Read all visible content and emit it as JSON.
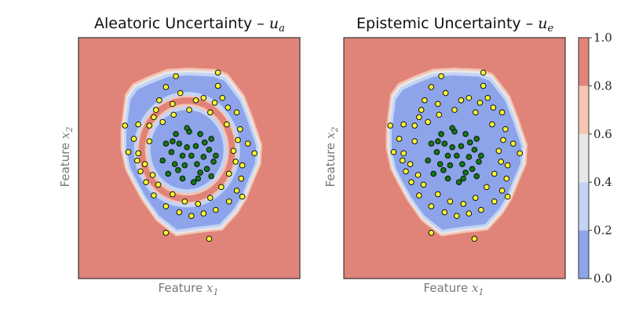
{
  "chart_data": [
    {
      "type": "heatmap",
      "title": "Aleatoric Uncertainty –",
      "title_symbol": "u",
      "title_subscript": "a",
      "xlabel": "Feature",
      "xlabel_symbol": "x",
      "xlabel_subscript": "1",
      "ylabel": "Feature",
      "ylabel_symbol": "x",
      "ylabel_subscript": "2",
      "xlim": [
        -1,
        1
      ],
      "ylim": [
        -1,
        1
      ],
      "inner_ring_uncertain": true,
      "boundary_outer": [
        [
          -0.62,
          0.24
        ],
        [
          -0.58,
          0.53
        ],
        [
          -0.51,
          0.62
        ],
        [
          -0.37,
          0.68
        ],
        [
          -0.2,
          0.74
        ],
        [
          0.0,
          0.75
        ],
        [
          0.24,
          0.74
        ],
        [
          0.35,
          0.7
        ],
        [
          0.5,
          0.52
        ],
        [
          0.58,
          0.33
        ],
        [
          0.66,
          0.11
        ],
        [
          0.65,
          -0.05
        ],
        [
          0.58,
          -0.2
        ],
        [
          0.52,
          -0.34
        ],
        [
          0.44,
          -0.46
        ],
        [
          0.3,
          -0.6
        ],
        [
          0.1,
          -0.62
        ],
        [
          -0.12,
          -0.65
        ],
        [
          -0.3,
          -0.52
        ],
        [
          -0.43,
          -0.35
        ],
        [
          -0.52,
          -0.2
        ],
        [
          -0.58,
          -0.09
        ],
        [
          -0.62,
          0.08
        ]
      ],
      "ring_center": [
        -0.02,
        0.07
      ],
      "ring_radii": [
        0.45,
        0.36
      ],
      "series": [
        {
          "name": "",
          "color": "#ffff33",
          "points": [
            [
              -0.21,
              0.59
            ],
            [
              -0.08,
              0.54
            ],
            [
              0.26,
              0.6
            ],
            [
              0.35,
              0.42
            ],
            [
              0.23,
              0.46
            ],
            [
              0.06,
              0.48
            ],
            [
              -0.15,
              0.45
            ],
            [
              -0.3,
              0.4
            ],
            [
              -0.36,
              0.27
            ],
            [
              -0.46,
              0.28
            ],
            [
              -0.5,
              0.16
            ],
            [
              -0.55,
              0.05
            ],
            [
              -0.46,
              0.04
            ],
            [
              -0.36,
              0.14
            ],
            [
              -0.32,
              0.34
            ],
            [
              -0.27,
              0.48
            ],
            [
              0.13,
              0.5
            ],
            [
              0.3,
              0.5
            ],
            [
              0.43,
              0.38
            ],
            [
              0.46,
              0.24
            ],
            [
              0.53,
              0.12
            ],
            [
              0.44,
              0.15
            ],
            [
              0.4,
              0.06
            ],
            [
              0.42,
              -0.03
            ],
            [
              0.48,
              -0.06
            ],
            [
              0.47,
              -0.17
            ],
            [
              0.43,
              -0.27
            ],
            [
              0.36,
              -0.36
            ],
            [
              0.24,
              -0.43
            ],
            [
              0.13,
              -0.46
            ],
            [
              0.02,
              -0.48
            ],
            [
              -0.09,
              -0.45
            ],
            [
              -0.21,
              -0.4
            ],
            [
              -0.32,
              -0.31
            ],
            [
              -0.39,
              -0.2
            ],
            [
              -0.44,
              -0.11
            ],
            [
              -0.47,
              -0.02
            ],
            [
              -0.4,
              -0.05
            ],
            [
              -0.33,
              -0.14
            ],
            [
              -0.28,
              -0.22
            ],
            [
              -0.15,
              -0.3
            ],
            [
              -0.04,
              -0.36
            ],
            [
              0.08,
              -0.38
            ],
            [
              0.19,
              -0.33
            ],
            [
              0.29,
              -0.24
            ],
            [
              0.36,
              -0.13
            ],
            [
              0.34,
              0.28
            ],
            [
              0.19,
              0.38
            ],
            [
              0.0,
              0.4
            ],
            [
              -0.14,
              0.36
            ],
            [
              -0.24,
              0.3
            ],
            [
              -0.58,
              0.27
            ],
            [
              -0.21,
              -0.62
            ],
            [
              0.18,
              -0.67
            ],
            [
              0.26,
              0.71
            ],
            [
              -0.12,
              0.68
            ],
            [
              0.48,
              -0.32
            ],
            [
              0.59,
              0.04
            ]
          ]
        },
        {
          "name": "",
          "color": "#117a11",
          "points": [
            [
              -0.02,
              0.09
            ],
            [
              0.06,
              0.1
            ],
            [
              0.13,
              0.01
            ],
            [
              0.18,
              0.07
            ],
            [
              -0.09,
              0.12
            ],
            [
              -0.16,
              0.05
            ],
            [
              -0.13,
              -0.05
            ],
            [
              -0.04,
              -0.06
            ],
            [
              0.07,
              -0.05
            ],
            [
              0.16,
              -0.09
            ],
            [
              0.0,
              0.22
            ],
            [
              0.1,
              0.2
            ],
            [
              -0.12,
              0.2
            ],
            [
              -0.21,
              0.12
            ],
            [
              -0.19,
              -0.13
            ],
            [
              -0.06,
              -0.17
            ],
            [
              0.08,
              -0.17
            ],
            [
              0.2,
              -0.15
            ],
            [
              0.24,
              0.02
            ],
            [
              0.2,
              0.16
            ],
            [
              -0.24,
              -0.02
            ],
            [
              0.02,
              0.02
            ],
            [
              -0.06,
              0.02
            ],
            [
              0.1,
              -0.12
            ],
            [
              -0.1,
              -0.1
            ],
            [
              0.14,
              0.13
            ],
            [
              -0.15,
              0.14
            ],
            [
              0.04,
              -0.2
            ],
            [
              -0.02,
              0.25
            ],
            [
              0.22,
              -0.03
            ]
          ]
        }
      ]
    },
    {
      "type": "heatmap",
      "title": "Epistemic Uncertainty –",
      "title_symbol": "u",
      "title_subscript": "e",
      "xlabel": "Feature",
      "xlabel_symbol": "x",
      "xlabel_subscript": "1",
      "ylabel": "Feature",
      "ylabel_symbol": "x",
      "ylabel_subscript": "2",
      "xlim": [
        -1,
        1
      ],
      "ylim": [
        -1,
        1
      ],
      "inner_ring_uncertain": false,
      "boundary_outer": [
        [
          -0.62,
          0.24
        ],
        [
          -0.58,
          0.53
        ],
        [
          -0.51,
          0.62
        ],
        [
          -0.37,
          0.68
        ],
        [
          -0.2,
          0.74
        ],
        [
          0.0,
          0.75
        ],
        [
          0.24,
          0.74
        ],
        [
          0.35,
          0.7
        ],
        [
          0.5,
          0.52
        ],
        [
          0.58,
          0.33
        ],
        [
          0.66,
          0.11
        ],
        [
          0.65,
          -0.05
        ],
        [
          0.58,
          -0.2
        ],
        [
          0.52,
          -0.34
        ],
        [
          0.44,
          -0.46
        ],
        [
          0.3,
          -0.6
        ],
        [
          0.1,
          -0.62
        ],
        [
          -0.12,
          -0.65
        ],
        [
          -0.3,
          -0.52
        ],
        [
          -0.43,
          -0.35
        ],
        [
          -0.52,
          -0.2
        ],
        [
          -0.58,
          -0.09
        ],
        [
          -0.62,
          0.08
        ]
      ],
      "series": [
        {
          "name": "",
          "color": "#ffff33",
          "points": [
            [
              -0.21,
              0.59
            ],
            [
              -0.08,
              0.54
            ],
            [
              0.26,
              0.6
            ],
            [
              0.35,
              0.42
            ],
            [
              0.23,
              0.46
            ],
            [
              0.06,
              0.48
            ],
            [
              -0.15,
              0.45
            ],
            [
              -0.3,
              0.4
            ],
            [
              -0.36,
              0.27
            ],
            [
              -0.46,
              0.28
            ],
            [
              -0.5,
              0.16
            ],
            [
              -0.55,
              0.05
            ],
            [
              -0.46,
              0.04
            ],
            [
              -0.36,
              0.14
            ],
            [
              -0.32,
              0.34
            ],
            [
              -0.27,
              0.48
            ],
            [
              0.13,
              0.5
            ],
            [
              0.3,
              0.5
            ],
            [
              0.43,
              0.38
            ],
            [
              0.46,
              0.24
            ],
            [
              0.53,
              0.12
            ],
            [
              0.44,
              0.15
            ],
            [
              0.4,
              0.06
            ],
            [
              0.42,
              -0.03
            ],
            [
              0.48,
              -0.06
            ],
            [
              0.47,
              -0.17
            ],
            [
              0.43,
              -0.27
            ],
            [
              0.36,
              -0.36
            ],
            [
              0.24,
              -0.43
            ],
            [
              0.13,
              -0.46
            ],
            [
              0.02,
              -0.48
            ],
            [
              -0.09,
              -0.45
            ],
            [
              -0.21,
              -0.4
            ],
            [
              -0.32,
              -0.31
            ],
            [
              -0.39,
              -0.2
            ],
            [
              -0.44,
              -0.11
            ],
            [
              -0.47,
              -0.02
            ],
            [
              -0.4,
              -0.05
            ],
            [
              -0.33,
              -0.14
            ],
            [
              -0.28,
              -0.22
            ],
            [
              -0.15,
              -0.3
            ],
            [
              -0.04,
              -0.36
            ],
            [
              0.08,
              -0.38
            ],
            [
              0.19,
              -0.33
            ],
            [
              0.29,
              -0.24
            ],
            [
              0.36,
              -0.13
            ],
            [
              0.34,
              0.28
            ],
            [
              0.19,
              0.38
            ],
            [
              0.0,
              0.4
            ],
            [
              -0.14,
              0.36
            ],
            [
              -0.24,
              0.3
            ],
            [
              -0.58,
              0.27
            ],
            [
              -0.21,
              -0.62
            ],
            [
              0.18,
              -0.67
            ],
            [
              0.26,
              0.71
            ],
            [
              -0.12,
              0.68
            ],
            [
              0.48,
              -0.32
            ],
            [
              0.59,
              0.04
            ]
          ]
        },
        {
          "name": "",
          "color": "#117a11",
          "points": [
            [
              -0.02,
              0.09
            ],
            [
              0.06,
              0.1
            ],
            [
              0.13,
              0.01
            ],
            [
              0.18,
              0.07
            ],
            [
              -0.09,
              0.12
            ],
            [
              -0.16,
              0.05
            ],
            [
              -0.13,
              -0.05
            ],
            [
              -0.04,
              -0.06
            ],
            [
              0.07,
              -0.05
            ],
            [
              0.16,
              -0.09
            ],
            [
              0.0,
              0.22
            ],
            [
              0.1,
              0.2
            ],
            [
              -0.12,
              0.2
            ],
            [
              -0.21,
              0.12
            ],
            [
              -0.19,
              -0.13
            ],
            [
              -0.06,
              -0.17
            ],
            [
              0.08,
              -0.17
            ],
            [
              0.2,
              -0.15
            ],
            [
              0.24,
              0.02
            ],
            [
              0.2,
              0.16
            ],
            [
              -0.24,
              -0.02
            ],
            [
              0.02,
              0.02
            ],
            [
              -0.06,
              0.02
            ],
            [
              0.1,
              -0.12
            ],
            [
              -0.1,
              -0.1
            ],
            [
              0.14,
              0.13
            ],
            [
              -0.15,
              0.14
            ],
            [
              0.04,
              -0.2
            ],
            [
              -0.02,
              0.25
            ],
            [
              0.22,
              -0.03
            ]
          ]
        }
      ]
    }
  ],
  "colorbar": {
    "bands": [
      {
        "from": 0.0,
        "to": 0.2,
        "color": "#8ea4ea"
      },
      {
        "from": 0.2,
        "to": 0.4,
        "color": "#c3d4f6"
      },
      {
        "from": 0.4,
        "to": 0.6,
        "color": "#e8e8e8"
      },
      {
        "from": 0.6,
        "to": 0.8,
        "color": "#f5c4b2"
      },
      {
        "from": 0.8,
        "to": 1.0,
        "color": "#e0847a"
      }
    ],
    "ticks": [
      "0.0",
      "0.2",
      "0.4",
      "0.6",
      "0.8",
      "1.0"
    ]
  }
}
